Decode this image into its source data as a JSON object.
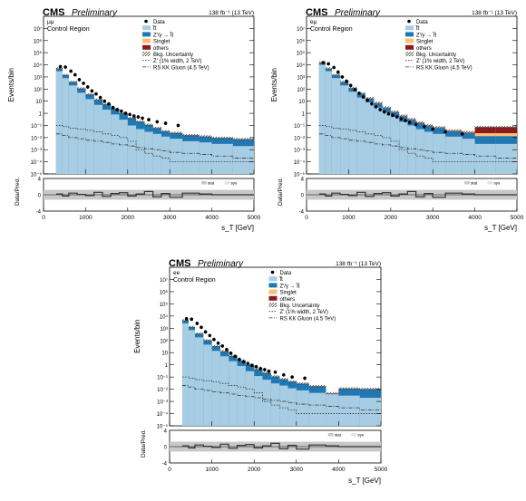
{
  "figure": {
    "cms_label": "CMS",
    "preliminary_label": "Preliminary",
    "lumi_label": "138 fb⁻¹ (13 TeV)",
    "region_label": "Control Region",
    "ylabel": "Events/bin",
    "ratio_ylabel": "Data/Pred.",
    "xlabel": "s_T [GeV]"
  },
  "legend": [
    {
      "label": "Data",
      "kind": "marker",
      "color": "#000000"
    },
    {
      "label": "t̅t",
      "kind": "fill",
      "color": "#a6cde3"
    },
    {
      "label": "Z'/γ → t̅t",
      "kind": "fill",
      "color": "#1f78b4"
    },
    {
      "label": "Singlet",
      "kind": "fill",
      "color": "#fdbf6f"
    },
    {
      "label": "others",
      "kind": "fill",
      "color": "#8b1a1a"
    },
    {
      "label": "Bkg. Uncertainty",
      "kind": "hatch",
      "color": "#555555"
    },
    {
      "label": "Z' (1% width, 2 TeV)",
      "kind": "line-dotted",
      "color": "#333333"
    },
    {
      "label": "RS KK Gluon (4.5 TeV)",
      "kind": "line-dashdot",
      "color": "#333333"
    }
  ],
  "ratio_legend": [
    "stat",
    "sys"
  ],
  "colors": {
    "ttbar": "#a6cde3",
    "zprime_bkg": "#1f78b4",
    "singlet": "#fdbf6f",
    "others": "#8b1a1a",
    "data": "#000000",
    "ratio_band": "#c8c8c8"
  },
  "chart_data": [
    {
      "type": "bar",
      "channel": "μμ",
      "xlim": [
        0,
        5000
      ],
      "ylim_log10": [
        -5,
        8
      ],
      "ratio_ylim": [
        -4,
        4
      ],
      "y_ticks": [
        "10⁻⁵",
        "10⁻⁴",
        "10⁻³",
        "10⁻²",
        "10⁻¹",
        "1",
        "10",
        "10²",
        "10³",
        "10⁴",
        "10⁵",
        "10⁶",
        "10⁷"
      ],
      "x_ticks": [
        "0",
        "1000",
        "2000",
        "3000",
        "4000",
        "5000"
      ],
      "ratio_ticks": [
        "-4",
        "0",
        "4"
      ],
      "bin_edges": [
        300,
        450,
        600,
        800,
        1000,
        1200,
        1400,
        1600,
        1800,
        2000,
        2200,
        2400,
        2600,
        2800,
        3000,
        3300,
        3700,
        4000,
        4500,
        5000
      ],
      "series": [
        {
          "name": "t̅t",
          "values": [
            3000,
            800,
            200,
            50,
            15,
            5,
            2,
            0.8,
            0.3,
            0.1,
            0.05,
            0.03,
            0.02,
            0.012,
            0.008,
            0.005,
            0.004,
            0.003,
            0.002
          ]
        },
        {
          "name": "Z'/γ → t̅t",
          "values": [
            2000,
            600,
            180,
            60,
            20,
            8,
            3.5,
            1.5,
            0.7,
            0.3,
            0.15,
            0.08,
            0.04,
            0.02,
            0.015,
            0.01,
            0.008,
            0.006,
            0.005
          ]
        },
        {
          "name": "Singlet",
          "values": [
            20,
            6,
            2,
            0.6,
            0.2,
            0.08,
            0.03,
            0.01,
            0.005,
            0.002,
            0.001,
            0.001,
            0.001,
            0.0005,
            0.0005,
            0.0003,
            0.0003,
            0.0002,
            0.0002
          ]
        },
        {
          "name": "others",
          "values": [
            60,
            20,
            6,
            2,
            0.7,
            0.25,
            0.1,
            0.04,
            0.015,
            0.006,
            0.003,
            0.0015,
            0.001,
            0.0008,
            0.0006,
            0.0004,
            0.0003,
            0.0002,
            0.0002
          ]
        }
      ],
      "data_x": [
        400,
        520,
        650,
        750,
        850,
        950,
        1050,
        1150,
        1250,
        1350,
        1450,
        1550,
        1650,
        1750,
        1850,
        1950,
        2050,
        2150,
        2250,
        2350,
        2500,
        2700,
        2900,
        3200
      ],
      "data_y": [
        7000,
        6500,
        3000,
        1500,
        600,
        300,
        150,
        70,
        40,
        20,
        10,
        6,
        3,
        2,
        1.5,
        1,
        0.8,
        0.6,
        0.5,
        0.4,
        0.3,
        0.2,
        0.15,
        0.1
      ],
      "zprime_signal": [
        0.1,
        0.08,
        0.06,
        0.05,
        0.04,
        0.03,
        0.02,
        0.015,
        0.01,
        0.005,
        0.001,
        0.0005,
        0.0003,
        0.0002,
        0.0001,
        0.0001,
        0.0001,
        0.0001,
        0.0001
      ],
      "rskk_signal": [
        0.02,
        0.015,
        0.01,
        0.008,
        0.006,
        0.005,
        0.004,
        0.003,
        0.0025,
        0.002,
        0.0015,
        0.0012,
        0.001,
        0.0008,
        0.0006,
        0.0005,
        0.0004,
        0.0003,
        0.0002
      ]
    },
    {
      "type": "bar",
      "channel": "eμ",
      "xlim": [
        0,
        5000
      ],
      "ylim_log10": [
        -5,
        8
      ],
      "ratio_ylim": [
        -4,
        4
      ],
      "y_ticks": [
        "10⁻⁵",
        "10⁻⁴",
        "10⁻³",
        "10⁻²",
        "10⁻¹",
        "1",
        "10",
        "10²",
        "10³",
        "10⁴",
        "10⁵",
        "10⁶",
        "10⁷"
      ],
      "x_ticks": [
        "0",
        "1000",
        "2000",
        "3000",
        "4000",
        "5000"
      ],
      "ratio_ticks": [
        "-4",
        "0",
        "4"
      ],
      "bin_edges": [
        300,
        450,
        600,
        800,
        1000,
        1200,
        1400,
        1600,
        1800,
        2000,
        2200,
        2400,
        2600,
        2800,
        3000,
        3300,
        3700,
        4000,
        4500,
        5000
      ],
      "series": [
        {
          "name": "t̅t",
          "values": [
            10000,
            3000,
            800,
            200,
            60,
            20,
            8,
            3,
            1.2,
            0.5,
            0.2,
            0.1,
            0.05,
            0.03,
            0.02,
            0.012,
            0.008,
            0.003,
            0.003
          ]
        },
        {
          "name": "Z'/γ → t̅t",
          "values": [
            5000,
            1800,
            550,
            160,
            55,
            20,
            8,
            3.5,
            1.5,
            0.7,
            0.35,
            0.18,
            0.1,
            0.06,
            0.04,
            0.02,
            0.015,
            0.01,
            0.01
          ]
        },
        {
          "name": "Singlet",
          "values": [
            800,
            250,
            80,
            25,
            8,
            3,
            1.2,
            0.5,
            0.2,
            0.1,
            0.05,
            0.03,
            0.02,
            0.01,
            0.006,
            0.004,
            0.003,
            0.01,
            0.01
          ]
        },
        {
          "name": "others",
          "values": [
            200,
            70,
            25,
            8,
            3,
            1.2,
            0.5,
            0.2,
            0.1,
            0.05,
            0.03,
            0.015,
            0.008,
            0.005,
            0.003,
            0.002,
            0.002,
            0.05,
            0.05
          ]
        }
      ],
      "data_x": [
        400,
        520,
        650,
        750,
        850,
        950,
        1050,
        1150,
        1250,
        1350,
        1450,
        1550,
        1650,
        1750,
        1850,
        1950,
        2050,
        2150,
        2250,
        2350,
        2450,
        2600,
        2800,
        3000,
        3300,
        3700
      ],
      "data_y": [
        15000,
        12000,
        6000,
        2500,
        1000,
        450,
        200,
        90,
        45,
        22,
        12,
        6,
        3.5,
        2,
        1.3,
        0.9,
        0.7,
        0.5,
        0.35,
        0.25,
        0.18,
        0.12,
        0.08,
        0.05,
        0.03,
        0.02
      ],
      "zprime_signal": [
        0.1,
        0.08,
        0.06,
        0.05,
        0.04,
        0.03,
        0.02,
        0.015,
        0.01,
        0.005,
        0.001,
        0.0005,
        0.0003,
        0.0002,
        0.0001,
        0.0001,
        0.0001,
        0.0001,
        0.0001
      ],
      "rskk_signal": [
        0.02,
        0.015,
        0.01,
        0.008,
        0.006,
        0.005,
        0.004,
        0.003,
        0.0025,
        0.002,
        0.0015,
        0.0012,
        0.001,
        0.0008,
        0.0006,
        0.0005,
        0.0004,
        0.0003,
        0.0002
      ]
    },
    {
      "type": "bar",
      "channel": "ee",
      "xlim": [
        0,
        5000
      ],
      "ylim_log10": [
        -5,
        8
      ],
      "ratio_ylim": [
        -4,
        4
      ],
      "y_ticks": [
        "10⁻⁵",
        "10⁻⁴",
        "10⁻³",
        "10⁻²",
        "10⁻¹",
        "1",
        "10",
        "10²",
        "10³",
        "10⁴",
        "10⁵",
        "10⁶",
        "10⁷"
      ],
      "x_ticks": [
        "0",
        "1000",
        "2000",
        "3000",
        "4000",
        "5000"
      ],
      "ratio_ticks": [
        "-4",
        "0",
        "4"
      ],
      "bin_edges": [
        300,
        450,
        600,
        800,
        1000,
        1200,
        1400,
        1600,
        1800,
        2000,
        2200,
        2400,
        2600,
        2800,
        3000,
        3300,
        3700,
        4000,
        4500,
        5000
      ],
      "series": [
        {
          "name": "t̅t",
          "values": [
            2500,
            700,
            180,
            45,
            14,
            5,
            2,
            0.8,
            0.3,
            0.12,
            0.06,
            0.03,
            0.02,
            0.012,
            0.008,
            0.005,
            0.004,
            0.003,
            0.002
          ]
        },
        {
          "name": "Z'/γ → t̅t",
          "values": [
            1800,
            550,
            170,
            55,
            19,
            7.5,
            3.2,
            1.4,
            0.65,
            0.3,
            0.15,
            0.08,
            0.045,
            0.03,
            0.02,
            0.012,
            2e-05,
            0.008,
            0.008
          ]
        },
        {
          "name": "Singlet",
          "values": [
            15,
            5,
            1.5,
            0.5,
            0.18,
            0.07,
            0.03,
            0.01,
            0.005,
            0.002,
            0.001,
            0.001,
            0.001,
            0.0005,
            0.0005,
            0.0003,
            0.0003,
            0.0002,
            0.0002
          ]
        },
        {
          "name": "others",
          "values": [
            50,
            16,
            5,
            1.6,
            0.6,
            0.2,
            0.08,
            0.03,
            0.012,
            0.005,
            0.0025,
            0.0012,
            0.0008,
            0.0006,
            0.0005,
            0.0004,
            0.0003,
            0.0002,
            0.0002
          ]
        }
      ],
      "data_x": [
        400,
        520,
        650,
        750,
        850,
        950,
        1050,
        1150,
        1250,
        1350,
        1450,
        1550,
        1650,
        1750,
        1850,
        1950,
        2050,
        2150,
        2250,
        2350,
        2500,
        2700,
        2900,
        3200
      ],
      "data_y": [
        6000,
        5500,
        2500,
        1200,
        500,
        250,
        120,
        60,
        35,
        18,
        9,
        5,
        2.8,
        1.8,
        1.3,
        0.9,
        0.7,
        0.5,
        0.4,
        0.3,
        0.25,
        0.15,
        0.1,
        0.08
      ],
      "zprime_signal": [
        0.1,
        0.08,
        0.06,
        0.05,
        0.04,
        0.03,
        0.02,
        0.015,
        0.01,
        0.005,
        0.001,
        0.0005,
        0.0003,
        0.0002,
        0.0001,
        0.0001,
        0.0001,
        0.0001,
        0.0001
      ],
      "rskk_signal": [
        0.02,
        0.015,
        0.01,
        0.008,
        0.006,
        0.005,
        0.004,
        0.003,
        0.0025,
        0.002,
        0.0015,
        0.0012,
        0.001,
        0.0008,
        0.0006,
        0.0005,
        0.0004,
        0.0003,
        0.0002
      ]
    }
  ]
}
